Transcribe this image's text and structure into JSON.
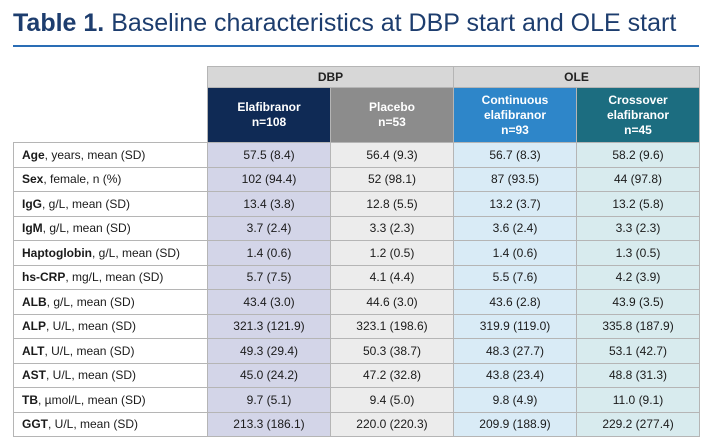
{
  "title": {
    "number": "Table 1.",
    "text": "Baseline characteristics at DBP start and OLE start"
  },
  "groups": {
    "dbp": "DBP",
    "ole": "OLE"
  },
  "arms": [
    {
      "line1": "Elafibranor",
      "line2": "",
      "line3": "n=108"
    },
    {
      "line1": "Placebo",
      "line2": "",
      "line3": "n=53"
    },
    {
      "line1": "Continuous",
      "line2": "elafibranor",
      "line3": "n=93"
    },
    {
      "line1": "Crossover",
      "line2": "elafibranor",
      "line3": "n=45"
    }
  ],
  "rows": [
    {
      "name": "Age",
      "desc": ", years, mean (SD)",
      "values": [
        "57.5 (8.4)",
        "56.4 (9.3)",
        "56.7 (8.3)",
        "58.2 (9.6)"
      ]
    },
    {
      "name": "Sex",
      "desc": ", female, n (%)",
      "values": [
        "102 (94.4)",
        "52 (98.1)",
        "87 (93.5)",
        "44 (97.8)"
      ]
    },
    {
      "name": "IgG",
      "desc": ", g/L, mean (SD)",
      "values": [
        "13.4 (3.8)",
        "12.8 (5.5)",
        "13.2 (3.7)",
        "13.2 (5.8)"
      ]
    },
    {
      "name": "IgM",
      "desc": ", g/L, mean (SD)",
      "values": [
        "3.7 (2.4)",
        "3.3 (2.3)",
        "3.6 (2.4)",
        "3.3 (2.3)"
      ]
    },
    {
      "name": "Haptoglobin",
      "desc": ", g/L, mean (SD)",
      "values": [
        "1.4 (0.6)",
        "1.2 (0.5)",
        "1.4 (0.6)",
        "1.3 (0.5)"
      ]
    },
    {
      "name": "hs-CRP",
      "desc": ", mg/L, mean (SD)",
      "values": [
        "5.7 (7.5)",
        "4.1 (4.4)",
        "5.5 (7.6)",
        "4.2 (3.9)"
      ]
    },
    {
      "name": "ALB",
      "desc": ", g/L, mean (SD)",
      "values": [
        "43.4 (3.0)",
        "44.6 (3.0)",
        "43.6 (2.8)",
        "43.9 (3.5)"
      ]
    },
    {
      "name": "ALP",
      "desc": ", U/L, mean (SD)",
      "values": [
        "321.3 (121.9)",
        "323.1 (198.6)",
        "319.9 (119.0)",
        "335.8 (187.9)"
      ]
    },
    {
      "name": "ALT",
      "desc": ", U/L, mean (SD)",
      "values": [
        "49.3 (29.4)",
        "50.3 (38.7)",
        "48.3 (27.7)",
        "53.1 (42.7)"
      ]
    },
    {
      "name": "AST",
      "desc": ", U/L, mean (SD)",
      "values": [
        "45.0 (24.2)",
        "47.2 (32.8)",
        "43.8 (23.4)",
        "48.8 (31.3)"
      ]
    },
    {
      "name": "TB",
      "desc": ", µmol/L, mean (SD)",
      "values": [
        "9.7 (5.1)",
        "9.4 (5.0)",
        "9.8 (4.9)",
        "11.0 (9.1)"
      ]
    },
    {
      "name": "GGT",
      "desc": ", U/L, mean (SD)",
      "values": [
        "213.3 (186.1)",
        "220.0 (220.3)",
        "209.9 (188.9)",
        "229.2 (277.4)"
      ]
    }
  ]
}
